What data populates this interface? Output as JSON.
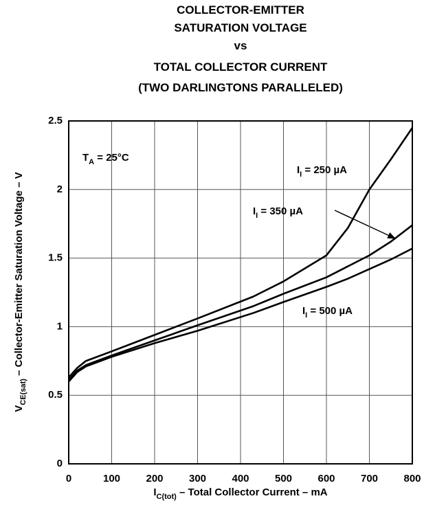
{
  "chart_data": {
    "type": "line",
    "title": [
      "COLLECTOR-EMITTER",
      "SATURATION VOLTAGE",
      "vs",
      "TOTAL COLLECTOR CURRENT",
      "(TWO DARLINGTONS PARALLELED)"
    ],
    "x_label": {
      "base": "I",
      "sub": "C(tot)",
      "text": " – Total Collector Current – mA"
    },
    "y_label": {
      "base": "V",
      "sub": "CE(sat)",
      "text": " – Collector-Emitter Saturation Voltage – V"
    },
    "annotation": {
      "base": "T",
      "sub": "A",
      "text": " = 25°C"
    },
    "x": [
      0,
      20,
      40,
      100,
      200,
      300,
      430,
      500,
      600,
      650,
      700,
      750,
      800
    ],
    "series": [
      {
        "label": {
          "base": "I",
          "sub": "I",
          "text": " = 250 µA"
        },
        "color": "#000000",
        "values": [
          0.63,
          0.7,
          0.75,
          0.82,
          0.94,
          1.06,
          1.22,
          1.33,
          1.52,
          1.72,
          2.0,
          2.22,
          2.45
        ]
      },
      {
        "label": {
          "base": "I",
          "sub": "I",
          "text": " = 350 µA"
        },
        "color": "#000000",
        "values": [
          0.61,
          0.68,
          0.72,
          0.79,
          0.9,
          1.01,
          1.15,
          1.24,
          1.36,
          1.44,
          1.52,
          1.62,
          1.74
        ]
      },
      {
        "label": {
          "base": "I",
          "sub": "I",
          "text": " = 500 µA"
        },
        "color": "#000000",
        "values": [
          0.6,
          0.67,
          0.71,
          0.78,
          0.88,
          0.97,
          1.1,
          1.18,
          1.29,
          1.35,
          1.42,
          1.49,
          1.57
        ]
      }
    ],
    "xlim": [
      0,
      800
    ],
    "xticks": [
      0,
      100,
      200,
      300,
      400,
      500,
      600,
      700,
      800
    ],
    "ylim": [
      0,
      2.5
    ],
    "yticks": [
      0,
      0.5,
      1,
      1.5,
      2,
      2.5
    ],
    "grid": true
  }
}
